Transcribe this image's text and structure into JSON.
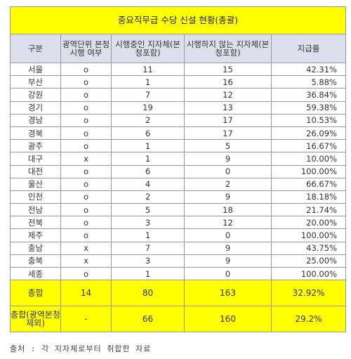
{
  "title": "중요직무급 수당 신설 현황(총괄)",
  "headers": [
    "구분",
    "광역단위 본청 시행 여부",
    "시행중인 지자체(본청포함)",
    "시행하지 않는 지자체(본청포함)",
    "지급률"
  ],
  "rows": [
    {
      "region": "서울",
      "flag": "o",
      "implemented": "11",
      "not_implemented": "15",
      "rate": "42.31%"
    },
    {
      "region": "부산",
      "flag": "o",
      "implemented": "1",
      "not_implemented": "16",
      "rate": "5.88%"
    },
    {
      "region": "강원",
      "flag": "o",
      "implemented": "7",
      "not_implemented": "12",
      "rate": "36.84%"
    },
    {
      "region": "경기",
      "flag": "o",
      "implemented": "19",
      "not_implemented": "13",
      "rate": "59.38%"
    },
    {
      "region": "경남",
      "flag": "o",
      "implemented": "2",
      "not_implemented": "17",
      "rate": "10.53%"
    },
    {
      "region": "경북",
      "flag": "o",
      "implemented": "6",
      "not_implemented": "17",
      "rate": "26.09%"
    },
    {
      "region": "광주",
      "flag": "o",
      "implemented": "1",
      "not_implemented": "5",
      "rate": "16.67%"
    },
    {
      "region": "대구",
      "flag": "x",
      "implemented": "1",
      "not_implemented": "9",
      "rate": "10.00%"
    },
    {
      "region": "대전",
      "flag": "o",
      "implemented": "6",
      "not_implemented": "0",
      "rate": "100.00%"
    },
    {
      "region": "울산",
      "flag": "o",
      "implemented": "4",
      "not_implemented": "2",
      "rate": "66.67%"
    },
    {
      "region": "인천",
      "flag": "o",
      "implemented": "2",
      "not_implemented": "9",
      "rate": "18.18%"
    },
    {
      "region": "전남",
      "flag": "o",
      "implemented": "5",
      "not_implemented": "18",
      "rate": "21.74%"
    },
    {
      "region": "전북",
      "flag": "o",
      "implemented": "3",
      "not_implemented": "12",
      "rate": "20.00%"
    },
    {
      "region": "제주",
      "flag": "o",
      "implemented": "1",
      "not_implemented": "0",
      "rate": "100.00%"
    },
    {
      "region": "충남",
      "flag": "x",
      "implemented": "7",
      "not_implemented": "9",
      "rate": "43.75%"
    },
    {
      "region": "충북",
      "flag": "x",
      "implemented": "3",
      "not_implemented": "9",
      "rate": "25.00%"
    },
    {
      "region": "세종",
      "flag": "o",
      "implemented": "1",
      "not_implemented": "0",
      "rate": "100.00%"
    }
  ],
  "totals": [
    {
      "label": "총합",
      "flag": "14",
      "implemented": "80",
      "not_implemented": "163",
      "rate": "32.92%"
    },
    {
      "label": "총합(광역본청제외)",
      "flag": "-",
      "implemented": "66",
      "not_implemented": "160",
      "rate": "29.2%"
    }
  ],
  "source": "출처 : 각 지자체로부터 취합한 자료",
  "colors": {
    "title_bg": "#ffff00",
    "header_bg": "#dde0ec",
    "border": "#9a9a9a"
  }
}
